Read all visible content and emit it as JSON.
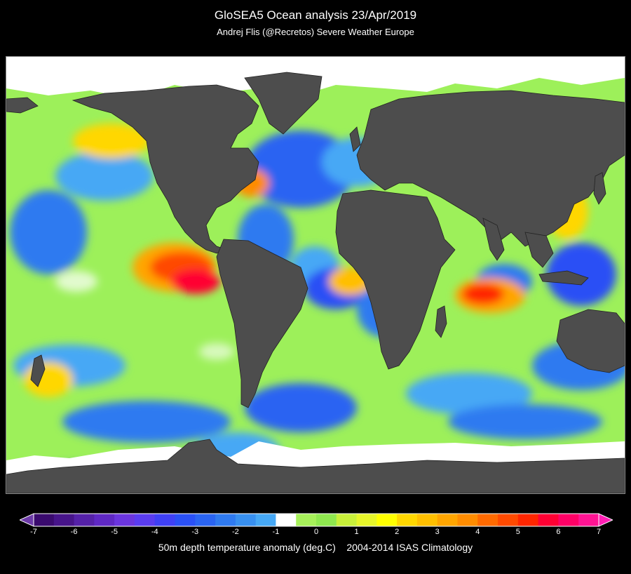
{
  "header": {
    "title": "GloSEA5 Ocean analysis 23/Apr/2019",
    "subtitle": "Andrej Flis (@Recretos)  Severe Weather Europe"
  },
  "colorbar": {
    "tick_labels": [
      "-7",
      "-6",
      "-5",
      "-4",
      "-3",
      "-2",
      "-1",
      "0",
      "1",
      "2",
      "3",
      "4",
      "5",
      "6",
      "7"
    ],
    "caption_left": "50m depth temperature anomaly (deg.C)",
    "caption_right": "2004-2014 ISAS Climatology",
    "colors": [
      "#3a0a6e",
      "#47148a",
      "#5521a8",
      "#5f28c4",
      "#6b35de",
      "#5a3cf0",
      "#3f40f5",
      "#2a50f5",
      "#2a64f2",
      "#2f7af0",
      "#3890f0",
      "#46a8f5",
      "#ffffff",
      "#a6f05a",
      "#8fe84f",
      "#c8f03a",
      "#e6f52a",
      "#ffff00",
      "#ffd700",
      "#ffbf00",
      "#ffa500",
      "#ff8c00",
      "#ff6a00",
      "#ff4a00",
      "#ff2600",
      "#ff0033",
      "#ff0066",
      "#ff1493"
    ],
    "over_color": "#ff1fb4",
    "under_color": "#6d3aa8"
  },
  "map": {
    "land_color": "#4d4d4d",
    "sea_ice_color": "#ffffff",
    "ocean_base_color": "#9df05a"
  }
}
